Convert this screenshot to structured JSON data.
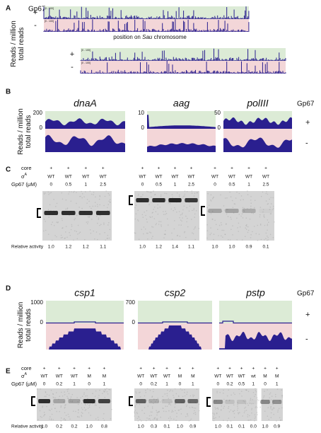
{
  "panel_a": {
    "label": "A",
    "gp67_label": "Gp67",
    "y_label": [
      "Reads / million",
      "total reads"
    ],
    "scale_label": "[0 - 100]",
    "x_label": {
      "before": "position on ",
      "italic": "Sau",
      "after": " chromosome"
    },
    "signs": [
      "+",
      "-",
      "+",
      "-"
    ]
  },
  "panel_b": {
    "label": "B",
    "gp67_label": "Gp67",
    "y_label": [
      "Reads / million",
      "total reads"
    ],
    "signs": [
      "+",
      "-"
    ],
    "genes": [
      {
        "name": "dnaA",
        "ymax": "200",
        "ymin": "0"
      },
      {
        "name": "aag",
        "ymax": "10",
        "ymin": "0"
      },
      {
        "name": "polIII",
        "ymax": "50",
        "ymin": "0"
      }
    ]
  },
  "panel_c": {
    "label": "C",
    "row_labels": {
      "core": "core",
      "sigma": {
        "base": "σ",
        "sup": "A"
      },
      "gp67": "Gp67 (μM)"
    },
    "activity_label": "Relative activity",
    "gels": [
      {
        "core": [
          "+",
          "+",
          "+",
          "+"
        ],
        "sigma": [
          "WT",
          "WT",
          "WT",
          "WT"
        ],
        "gp67": [
          "0",
          "0.5",
          "1",
          "2.5"
        ],
        "activity": [
          "1.0",
          "1.2",
          "1.2",
          "1.1"
        ]
      },
      {
        "core": [
          "+",
          "+",
          "+",
          "+"
        ],
        "sigma": [
          "WT",
          "WT",
          "WT",
          "WT"
        ],
        "gp67": [
          "0",
          "0.5",
          "1",
          "2.5"
        ],
        "activity": [
          "1.0",
          "1.2",
          "1.4",
          "1.1"
        ]
      },
      {
        "core": [
          "+",
          "+",
          "+",
          "+"
        ],
        "sigma": [
          "WT",
          "WT",
          "WT",
          "WT"
        ],
        "gp67": [
          "0",
          "0.5",
          "1",
          "2.5"
        ],
        "activity": [
          "1.0",
          "1.0",
          "0.9",
          "0.1"
        ]
      }
    ]
  },
  "panel_d": {
    "label": "D",
    "gp67_label": "Gp67",
    "y_label": [
      "Reads / million",
      "total reads"
    ],
    "signs": [
      "+",
      "-"
    ],
    "genes": [
      {
        "name": "csp1",
        "ymax": "1000",
        "ymin": "0"
      },
      {
        "name": "csp2",
        "ymax": "700",
        "ymin": "0"
      },
      {
        "name": "pstp"
      }
    ]
  },
  "panel_e": {
    "label": "E",
    "row_labels": {
      "core": "core",
      "sigma": {
        "base": "σ",
        "sup": "A"
      },
      "gp67": "Gp67 (μM)"
    },
    "activity_label": "Relative activity",
    "gels": [
      {
        "core": [
          "+",
          "+",
          "+",
          "+",
          "+"
        ],
        "sigma": [
          "WT",
          "WT",
          "WT",
          "M",
          "M"
        ],
        "gp67": [
          "0",
          "0.2",
          "1",
          "0",
          "1"
        ],
        "activity": [
          "1.0",
          "0.2",
          "0.2",
          "1.0",
          "0.8"
        ]
      },
      {
        "core": [
          "+",
          "+",
          "+",
          "+",
          "+"
        ],
        "sigma": [
          "WT",
          "WT",
          "WT",
          "M",
          "M"
        ],
        "gp67": [
          "0",
          "0.2",
          "1",
          "0",
          "1"
        ],
        "activity": [
          "1.0",
          "0.3",
          "0.1",
          "1.0",
          "0.9"
        ]
      },
      {
        "core": [
          "+",
          "+",
          "+",
          "+",
          "+",
          "+"
        ],
        "sigma": [
          "WT",
          "WT",
          "WT",
          "wt",
          "M",
          "M"
        ],
        "gp67": [
          "0",
          "0.2",
          "0.5",
          "1",
          "0",
          "1"
        ],
        "activity": [
          "1.0",
          "0.1",
          "0.1",
          "0.0",
          "1.0",
          "0.9"
        ]
      }
    ]
  }
}
